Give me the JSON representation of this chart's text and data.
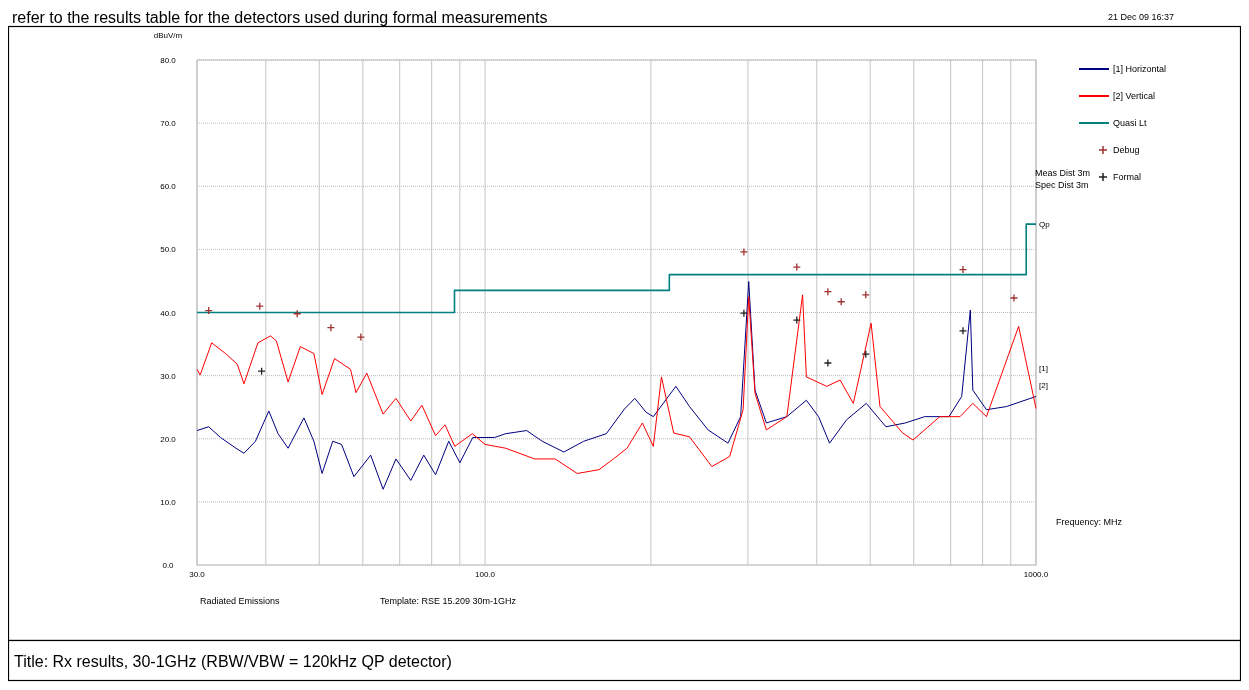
{
  "chart_data": {
    "type": "line",
    "title": "Title: Rx results, 30-1GHz (RBW/VBW = 120kHz QP detector)",
    "xlabel": "Frequency: MHz",
    "ylabel": "dBuV/m",
    "log": "x",
    "grid": true,
    "legend": "top right",
    "xlim": [
      30,
      1000
    ],
    "ylim": [
      0,
      80
    ],
    "xticks": [
      {
        "value": 30,
        "label": "30.0"
      },
      {
        "value": 40,
        "label": null
      },
      {
        "value": 50,
        "label": null
      },
      {
        "value": 60,
        "label": null
      },
      {
        "value": 70,
        "label": null
      },
      {
        "value": 80,
        "label": null
      },
      {
        "value": 90,
        "label": null
      },
      {
        "value": 100,
        "label": "100.0"
      },
      {
        "value": 200,
        "label": null
      },
      {
        "value": 300,
        "label": null
      },
      {
        "value": 400,
        "label": null
      },
      {
        "value": 500,
        "label": null
      },
      {
        "value": 600,
        "label": null
      },
      {
        "value": 700,
        "label": null
      },
      {
        "value": 800,
        "label": null
      },
      {
        "value": 900,
        "label": null
      },
      {
        "value": 1000,
        "label": "1000.0"
      }
    ],
    "yticks": [
      {
        "value": 0,
        "label": "0.0"
      },
      {
        "value": 10,
        "label": "10.0"
      },
      {
        "value": 20,
        "label": "20.0"
      },
      {
        "value": 30,
        "label": "30.0"
      },
      {
        "value": 40,
        "label": "40.0"
      },
      {
        "value": 50,
        "label": "50.0"
      },
      {
        "value": 60,
        "label": "60.0"
      },
      {
        "value": 70,
        "label": "70.0"
      },
      {
        "value": 80,
        "label": "80.0"
      }
    ],
    "series": [
      {
        "name": "[1] Horizontal",
        "color": "#000080",
        "x": [
          30,
          31.5,
          33.1,
          35.3,
          36.5,
          38.3,
          40.5,
          42.1,
          43.9,
          46.9,
          48.9,
          50.6,
          52.9,
          54.9,
          57.8,
          62,
          65.3,
          68.9,
          73.3,
          77.4,
          81.3,
          85.9,
          90,
          95,
          104,
          109,
          119,
          127,
          139,
          151,
          166,
          179,
          187,
          196,
          202,
          222,
          235,
          254,
          276,
          291,
          301,
          309,
          324,
          353,
          383,
          403,
          422,
          453,
          492,
          534,
          579,
          628,
          695,
          733,
          760,
          768,
          813,
          884,
          1000
        ],
        "values": [
          21.3,
          21.9,
          20.2,
          18.5,
          17.7,
          19.6,
          24.4,
          20.8,
          18.5,
          23.3,
          19.6,
          14.5,
          19.6,
          19.1,
          14,
          17.4,
          12,
          16.8,
          13.4,
          17.4,
          14.3,
          19.6,
          16.2,
          20.2,
          20.2,
          20.8,
          21.3,
          19.6,
          17.9,
          19.6,
          20.8,
          24.7,
          26.4,
          24.2,
          23.5,
          28.3,
          25.1,
          21.4,
          19.3,
          23.5,
          44.9,
          27.7,
          22.5,
          23.5,
          26.1,
          23.5,
          19.3,
          23,
          25.6,
          21.9,
          22.5,
          23.5,
          23.5,
          26.7,
          40.4,
          27.7,
          24.6,
          25.1,
          26.7
        ]
      },
      {
        "name": "[2] Vertical",
        "color": "#ff0000",
        "x": [
          30,
          30.4,
          31.9,
          33.8,
          35.5,
          36.5,
          38.7,
          40.8,
          41.8,
          43.9,
          46.2,
          48.9,
          50.6,
          53.3,
          57,
          58.3,
          61,
          65.3,
          68.9,
          73.3,
          76.8,
          81.3,
          84.6,
          88.1,
          94.8,
          100,
          109,
          123,
          134,
          147,
          161,
          171,
          181,
          193,
          202,
          209,
          220,
          235,
          258,
          278,
          294,
          301,
          309,
          324,
          353,
          377,
          383,
          417,
          441,
          466,
          502,
          521,
          573,
          598,
          669,
          728,
          768,
          813,
          930,
          1000
        ],
        "values": [
          31,
          30.1,
          35.2,
          33.5,
          31.8,
          28.7,
          35.2,
          36.3,
          35.5,
          29,
          34.6,
          33.5,
          27,
          32.7,
          31,
          27.3,
          30.4,
          23.9,
          26.4,
          22.8,
          25.3,
          20.5,
          22.2,
          18.8,
          20.8,
          19.1,
          18.5,
          16.8,
          16.8,
          14.5,
          15.1,
          16.8,
          18.5,
          22.5,
          18.8,
          29.8,
          20.9,
          20.3,
          15.6,
          17.2,
          24.6,
          42.5,
          27.2,
          21.4,
          23.5,
          42.8,
          29.8,
          28.3,
          29.3,
          25.6,
          38.3,
          25.1,
          20.9,
          19.8,
          23.5,
          23.5,
          25.6,
          23.5,
          37.8,
          24.8
        ]
      },
      {
        "name": "Quasi Lt",
        "type": "step",
        "color": "#008080",
        "x": [
          30,
          88,
          216,
          960,
          1000
        ],
        "values": [
          40,
          43.5,
          46,
          54,
          54
        ]
      },
      {
        "name": "Debug",
        "type": "scatter",
        "marker": "cross",
        "color": "#a03030",
        "x": [
          31.5,
          39,
          45.6,
          52.5,
          59.5,
          295,
          368,
          419,
          443,
          491,
          737,
          912
        ],
        "values": [
          40.3,
          41,
          39.8,
          37.6,
          36.1,
          49.6,
          47.2,
          43.3,
          41.7,
          42.8,
          46.8,
          42.3
        ]
      },
      {
        "name": "Formal",
        "type": "scatter",
        "marker": "cross",
        "color": "#202020",
        "x": [
          39.3,
          295,
          368,
          419,
          491,
          737
        ],
        "values": [
          30.7,
          39.9,
          38.8,
          32,
          33.4,
          37.1
        ]
      }
    ],
    "annotations": [
      "refer to the results table for the detectors used during formal measurements",
      "21 Dec 09 16:37",
      "Meas Dist 3m",
      "Spec Dist 3m",
      "Radiated Emissions",
      "Template: RSE 15.209  30m-1GHz",
      "Qp",
      "[1]",
      "[2]"
    ]
  }
}
